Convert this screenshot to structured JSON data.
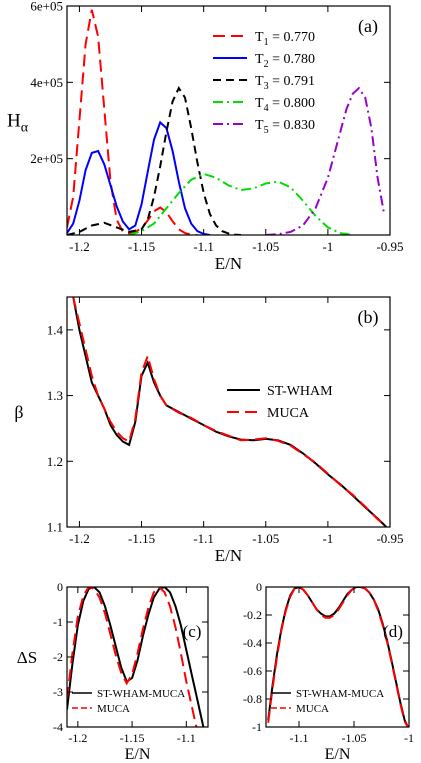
{
  "chart_data": [
    {
      "panel_label": "(a)",
      "type": "line",
      "title": "",
      "xlabel": "E/N",
      "ylabel_main": "H",
      "ylabel_sub": "α",
      "xlim": [
        -1.21,
        -0.95
      ],
      "ylim": [
        0,
        600000
      ],
      "xticks": [
        {
          "v": -1.2,
          "label": "-1.2"
        },
        {
          "v": -1.15,
          "label": "-1.15"
        },
        {
          "v": -1.1,
          "label": "-1.1"
        },
        {
          "v": -1.05,
          "label": "-1.05"
        },
        {
          "v": -1.0,
          "label": "-1"
        },
        {
          "v": -0.95,
          "label": "-0.95"
        }
      ],
      "yticks": [
        {
          "v": 200000,
          "label": "2e+05"
        },
        {
          "v": 400000,
          "label": "4e+05"
        },
        {
          "v": 600000,
          "label": "6e+05"
        }
      ],
      "legend_position": "top-right",
      "series": [
        {
          "name_main": "T",
          "name_sub": "1",
          "name_rest": " = 0.770",
          "color": "#ff0000",
          "dash": "12,6",
          "x": [
            -1.21,
            -1.205,
            -1.2,
            -1.195,
            -1.19,
            -1.185,
            -1.18,
            -1.175,
            -1.17,
            -1.165,
            -1.16,
            -1.155,
            -1.15,
            -1.145,
            -1.14,
            -1.135,
            -1.13,
            -1.125,
            -1.12,
            -1.115,
            -1.11,
            -1.105
          ],
          "y": [
            20000,
            100000,
            300000,
            500000,
            590000,
            520000,
            330000,
            140000,
            40000,
            8000,
            4000,
            8000,
            18000,
            38000,
            62000,
            72000,
            60000,
            36000,
            15000,
            5000,
            1000,
            0
          ]
        },
        {
          "name_main": "T",
          "name_sub": "2",
          "name_rest": " = 0.780",
          "color": "#0000ff",
          "dash": "",
          "x": [
            -1.21,
            -1.205,
            -1.2,
            -1.195,
            -1.19,
            -1.185,
            -1.18,
            -1.175,
            -1.17,
            -1.165,
            -1.16,
            -1.155,
            -1.15,
            -1.145,
            -1.14,
            -1.135,
            -1.13,
            -1.125,
            -1.12,
            -1.115,
            -1.11,
            -1.105,
            -1.1,
            -1.095
          ],
          "y": [
            5000,
            30000,
            90000,
            170000,
            215000,
            220000,
            185000,
            130000,
            75000,
            35000,
            15000,
            25000,
            80000,
            165000,
            250000,
            295000,
            280000,
            220000,
            140000,
            70000,
            30000,
            10000,
            3000,
            0
          ]
        },
        {
          "name_main": "T",
          "name_sub": "3",
          "name_rest": " = 0.791",
          "color": "#000000",
          "dash": "8,5",
          "x": [
            -1.21,
            -1.2,
            -1.19,
            -1.18,
            -1.17,
            -1.16,
            -1.15,
            -1.145,
            -1.14,
            -1.135,
            -1.13,
            -1.125,
            -1.12,
            -1.115,
            -1.11,
            -1.105,
            -1.1,
            -1.095,
            -1.09,
            -1.085,
            -1.08,
            -1.075,
            -1.07
          ],
          "y": [
            0,
            8000,
            25000,
            32000,
            20000,
            8000,
            15000,
            40000,
            100000,
            180000,
            270000,
            350000,
            385000,
            360000,
            280000,
            190000,
            110000,
            55000,
            25000,
            10000,
            4000,
            1000,
            0
          ]
        },
        {
          "name_main": "T",
          "name_sub": "4",
          "name_rest": " = 0.800",
          "color": "#00dd00",
          "dash": "10,4,2,4",
          "x": [
            -1.16,
            -1.15,
            -1.14,
            -1.13,
            -1.12,
            -1.11,
            -1.1,
            -1.09,
            -1.08,
            -1.07,
            -1.06,
            -1.05,
            -1.04,
            -1.03,
            -1.02,
            -1.01,
            -1.0,
            -0.99,
            -0.98
          ],
          "y": [
            0,
            10000,
            30000,
            70000,
            110000,
            145000,
            160000,
            150000,
            130000,
            118000,
            122000,
            135000,
            140000,
            125000,
            90000,
            50000,
            20000,
            5000,
            0
          ]
        },
        {
          "name_main": "T",
          "name_sub": "5",
          "name_rest": " = 0.830",
          "color": "#9900cc",
          "dash": "10,4,2,4",
          "x": [
            -1.05,
            -1.04,
            -1.03,
            -1.02,
            -1.01,
            -1.0,
            -0.99,
            -0.985,
            -0.98,
            -0.975,
            -0.97,
            -0.965,
            -0.96,
            -0.955
          ],
          "y": [
            0,
            2000,
            8000,
            25000,
            70000,
            150000,
            270000,
            330000,
            370000,
            385000,
            360000,
            280000,
            150000,
            60000
          ]
        }
      ]
    },
    {
      "panel_label": "(b)",
      "type": "line",
      "xlabel": "E/N",
      "ylabel": "β",
      "xlim": [
        -1.21,
        -0.95
      ],
      "ylim": [
        1.1,
        1.45
      ],
      "xticks": [
        {
          "v": -1.2,
          "label": "-1.2"
        },
        {
          "v": -1.15,
          "label": "-1.15"
        },
        {
          "v": -1.1,
          "label": "-1.1"
        },
        {
          "v": -1.05,
          "label": "-1.05"
        },
        {
          "v": -1.0,
          "label": "-1"
        },
        {
          "v": -0.95,
          "label": "-0.95"
        }
      ],
      "yticks": [
        {
          "v": 1.1,
          "label": "1.1"
        },
        {
          "v": 1.2,
          "label": "1.2"
        },
        {
          "v": 1.3,
          "label": "1.3"
        },
        {
          "v": 1.4,
          "label": "1.4"
        }
      ],
      "legend_position": "center-right",
      "series": [
        {
          "name": "ST-WHAM",
          "color": "#000000",
          "dash": "",
          "x": [
            -1.205,
            -1.2,
            -1.195,
            -1.19,
            -1.185,
            -1.18,
            -1.175,
            -1.17,
            -1.165,
            -1.16,
            -1.155,
            -1.15,
            -1.145,
            -1.14,
            -1.135,
            -1.13,
            -1.12,
            -1.11,
            -1.1,
            -1.09,
            -1.08,
            -1.07,
            -1.06,
            -1.05,
            -1.04,
            -1.03,
            -1.02,
            -1.01,
            -1.0,
            -0.99,
            -0.98,
            -0.97,
            -0.96,
            -0.953
          ],
          "y": [
            1.45,
            1.4,
            1.36,
            1.32,
            1.3,
            1.28,
            1.255,
            1.24,
            1.23,
            1.225,
            1.26,
            1.33,
            1.35,
            1.32,
            1.3,
            1.285,
            1.275,
            1.265,
            1.255,
            1.245,
            1.238,
            1.233,
            1.232,
            1.234,
            1.232,
            1.225,
            1.212,
            1.197,
            1.18,
            1.165,
            1.148,
            1.13,
            1.113,
            1.1
          ]
        },
        {
          "name": "MUCA",
          "color": "#ff0000",
          "dash": "12,6",
          "x": [
            -1.205,
            -1.2,
            -1.195,
            -1.19,
            -1.185,
            -1.18,
            -1.175,
            -1.17,
            -1.165,
            -1.16,
            -1.155,
            -1.15,
            -1.145,
            -1.14,
            -1.135,
            -1.13,
            -1.12,
            -1.11,
            -1.1,
            -1.09,
            -1.08,
            -1.07,
            -1.06,
            -1.05,
            -1.04,
            -1.03,
            -1.02,
            -1.01,
            -1.0,
            -0.99,
            -0.98,
            -0.97,
            -0.96,
            -0.953
          ],
          "y": [
            1.45,
            1.41,
            1.37,
            1.33,
            1.3,
            1.28,
            1.26,
            1.245,
            1.235,
            1.23,
            1.265,
            1.335,
            1.36,
            1.325,
            1.3,
            1.285,
            1.274,
            1.266,
            1.255,
            1.246,
            1.239,
            1.232,
            1.233,
            1.235,
            1.231,
            1.224,
            1.211,
            1.198,
            1.181,
            1.164,
            1.149,
            1.131,
            1.112,
            1.1
          ]
        }
      ]
    },
    {
      "panel_label": "(c)",
      "type": "line",
      "xlabel": "E/N",
      "ylabel": "ΔS",
      "xlim": [
        -1.21,
        -1.08
      ],
      "ylim": [
        -4,
        0
      ],
      "xticks": [
        {
          "v": -1.2,
          "label": "-1.2"
        },
        {
          "v": -1.15,
          "label": "-1.15"
        },
        {
          "v": -1.1,
          "label": "-1.1"
        }
      ],
      "yticks": [
        {
          "v": 0,
          "label": "0"
        },
        {
          "v": -1,
          "label": "-1"
        },
        {
          "v": -2,
          "label": "-2"
        },
        {
          "v": -3,
          "label": "-3"
        },
        {
          "v": -4,
          "label": "-4"
        }
      ],
      "legend_position": "bottom-left",
      "series": [
        {
          "name": "ST-WHAM-MUCA",
          "color": "#000000",
          "dash": "",
          "x": [
            -1.21,
            -1.205,
            -1.2,
            -1.195,
            -1.19,
            -1.185,
            -1.18,
            -1.175,
            -1.17,
            -1.165,
            -1.16,
            -1.155,
            -1.15,
            -1.145,
            -1.14,
            -1.135,
            -1.13,
            -1.125,
            -1.12,
            -1.115,
            -1.11,
            -1.105,
            -1.1,
            -1.095,
            -1.09,
            -1.085,
            -1.08
          ],
          "y": [
            -3.5,
            -2.2,
            -1.1,
            -0.4,
            -0.05,
            0.0,
            -0.15,
            -0.55,
            -1.1,
            -1.7,
            -2.3,
            -2.7,
            -2.6,
            -2.1,
            -1.4,
            -0.8,
            -0.3,
            -0.05,
            0.0,
            -0.15,
            -0.55,
            -1.1,
            -1.8,
            -2.5,
            -3.2,
            -3.9,
            -4.6
          ]
        },
        {
          "name": "MUCA",
          "color": "#ff0000",
          "dash": "12,6",
          "x": [
            -1.21,
            -1.205,
            -1.2,
            -1.195,
            -1.19,
            -1.185,
            -1.18,
            -1.175,
            -1.17,
            -1.165,
            -1.16,
            -1.155,
            -1.15,
            -1.145,
            -1.14,
            -1.135,
            -1.13,
            -1.125,
            -1.12,
            -1.115,
            -1.11,
            -1.105,
            -1.1,
            -1.095,
            -1.09
          ],
          "y": [
            -3.2,
            -1.9,
            -0.85,
            -0.25,
            0.0,
            -0.05,
            -0.3,
            -0.75,
            -1.35,
            -1.95,
            -2.45,
            -2.75,
            -2.5,
            -1.9,
            -1.2,
            -0.6,
            -0.15,
            0.0,
            -0.15,
            -0.55,
            -1.15,
            -1.9,
            -2.7,
            -3.4,
            -4.1
          ]
        }
      ]
    },
    {
      "panel_label": "(d)",
      "type": "line",
      "xlabel": "E/N",
      "ylabel": "",
      "xlim": [
        -1.13,
        -1.0
      ],
      "ylim": [
        -1,
        0
      ],
      "xticks": [
        {
          "v": -1.1,
          "label": "-1.1"
        },
        {
          "v": -1.05,
          "label": "-1.05"
        },
        {
          "v": -1.0,
          "label": "-1"
        }
      ],
      "yticks": [
        {
          "v": 0,
          "label": "0"
        },
        {
          "v": -0.2,
          "label": "-0.2"
        },
        {
          "v": -0.4,
          "label": "-0.4"
        },
        {
          "v": -0.6,
          "label": "-0.6"
        },
        {
          "v": -0.8,
          "label": "-0.8"
        },
        {
          "v": -1.0,
          "label": "-1"
        }
      ],
      "legend_position": "bottom-left",
      "series": [
        {
          "name": "ST-WHAM-MUCA",
          "color": "#000000",
          "dash": "",
          "x": [
            -1.128,
            -1.124,
            -1.12,
            -1.116,
            -1.112,
            -1.108,
            -1.104,
            -1.1,
            -1.096,
            -1.092,
            -1.088,
            -1.084,
            -1.08,
            -1.076,
            -1.072,
            -1.068,
            -1.064,
            -1.06,
            -1.056,
            -1.052,
            -1.048,
            -1.044,
            -1.04,
            -1.036,
            -1.032,
            -1.028,
            -1.024,
            -1.02,
            -1.016,
            -1.012,
            -1.008,
            -1.004,
            -1.001
          ],
          "y": [
            -0.95,
            -0.7,
            -0.48,
            -0.3,
            -0.16,
            -0.06,
            -0.01,
            0.0,
            -0.02,
            -0.06,
            -0.11,
            -0.16,
            -0.19,
            -0.21,
            -0.21,
            -0.19,
            -0.15,
            -0.1,
            -0.05,
            -0.02,
            0.0,
            0.0,
            -0.01,
            -0.04,
            -0.09,
            -0.16,
            -0.26,
            -0.38,
            -0.52,
            -0.67,
            -0.82,
            -0.95,
            -1.0
          ]
        },
        {
          "name": "MUCA",
          "color": "#ff0000",
          "dash": "12,6",
          "x": [
            -1.128,
            -1.124,
            -1.12,
            -1.116,
            -1.112,
            -1.108,
            -1.104,
            -1.1,
            -1.096,
            -1.092,
            -1.088,
            -1.084,
            -1.08,
            -1.076,
            -1.072,
            -1.068,
            -1.064,
            -1.06,
            -1.056,
            -1.052,
            -1.048,
            -1.044,
            -1.04,
            -1.036,
            -1.032,
            -1.028,
            -1.024,
            -1.02,
            -1.016,
            -1.012,
            -1.008,
            -1.004,
            -1.001
          ],
          "y": [
            -0.97,
            -0.72,
            -0.5,
            -0.31,
            -0.17,
            -0.07,
            -0.01,
            0.0,
            -0.02,
            -0.06,
            -0.11,
            -0.16,
            -0.2,
            -0.22,
            -0.22,
            -0.2,
            -0.16,
            -0.11,
            -0.06,
            -0.02,
            0.0,
            0.0,
            -0.01,
            -0.04,
            -0.09,
            -0.17,
            -0.27,
            -0.39,
            -0.53,
            -0.68,
            -0.83,
            -0.96,
            -1.0
          ]
        }
      ]
    }
  ]
}
